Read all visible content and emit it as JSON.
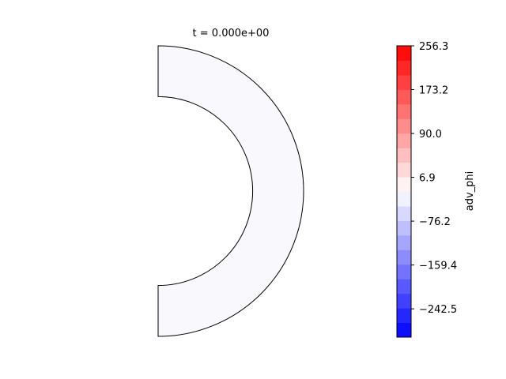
{
  "chart_data": {
    "type": "heatmap",
    "title": "t = 0.000e+00",
    "field_value_shown": "near-zero (uniform, very light blue/white)",
    "field_color": "#f9f9fd",
    "colormap": "bwr",
    "colorbar": {
      "label": "adv_phi",
      "range": [
        -296.2,
        256.3
      ],
      "levels": 20,
      "ticks": [
        256.3,
        173.2,
        90.0,
        6.9,
        -76.2,
        -159.4,
        -242.5
      ],
      "tick_labels": [
        "256.3",
        "173.2",
        "90.0",
        "6.9",
        "−76.2",
        "−159.4",
        "−242.5"
      ]
    },
    "domain_shape": "half annulus (right half)",
    "inner_radius_ratio": 0.65
  }
}
